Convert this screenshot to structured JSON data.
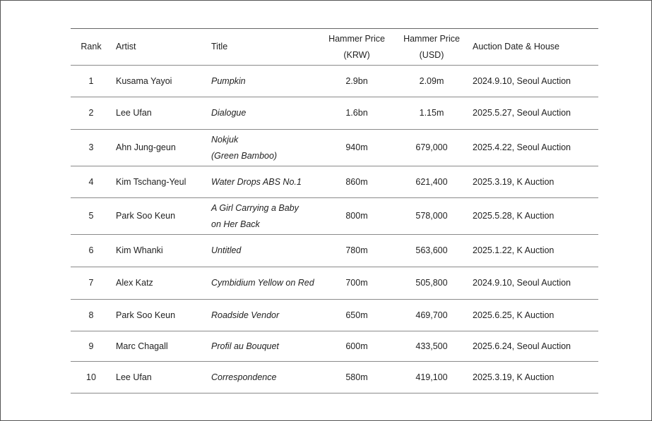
{
  "table": {
    "header": [
      "Rank",
      "Artist",
      "Title",
      "Hammer Price\n(KRW)",
      "Hammer Price\n(USD)",
      "Auction Date & House"
    ],
    "rows": [
      [
        "1",
        "Kusama Yayoi",
        "Pumpkin",
        "2.9bn",
        "2.09m",
        "2024.9.10, Seoul Auction"
      ],
      [
        "2",
        "Lee Ufan",
        "Dialogue",
        "1.6bn",
        "1.15m",
        "2025.5.27, Seoul Auction"
      ],
      [
        "3",
        "Ahn Jung-geun",
        "Nokjuk\n(Green Bamboo)",
        "940m",
        "679,000",
        "2025.4.22, Seoul Auction"
      ],
      [
        "4",
        "Kim Tschang-Yeul",
        "Water Drops ABS No.1",
        "860m",
        "621,400",
        "2025.3.19, K Auction"
      ],
      [
        "5",
        "Park Soo Keun",
        "A Girl Carrying a Baby\non Her Back",
        "800m",
        "578,000",
        "2025.5.28, K Auction"
      ],
      [
        "6",
        "Kim Whanki",
        "Untitled",
        "780m",
        "563,600",
        "2025.1.22, K Auction"
      ],
      [
        "7",
        "Alex Katz",
        "Cymbidium Yellow on Red",
        "700m",
        "505,800",
        "2024.9.10, Seoul Auction"
      ],
      [
        "8",
        "Park Soo Keun",
        "Roadside Vendor",
        "650m",
        "469,700",
        "2025.6.25, K Auction"
      ],
      [
        "9",
        "Marc Chagall",
        "Profil au Bouquet",
        "600m",
        "433,500",
        "2025.6.24, Seoul Auction"
      ],
      [
        "10",
        "Lee Ufan",
        "Correspondence",
        "580m",
        "419,100",
        "2025.3.19, K Auction"
      ]
    ]
  }
}
